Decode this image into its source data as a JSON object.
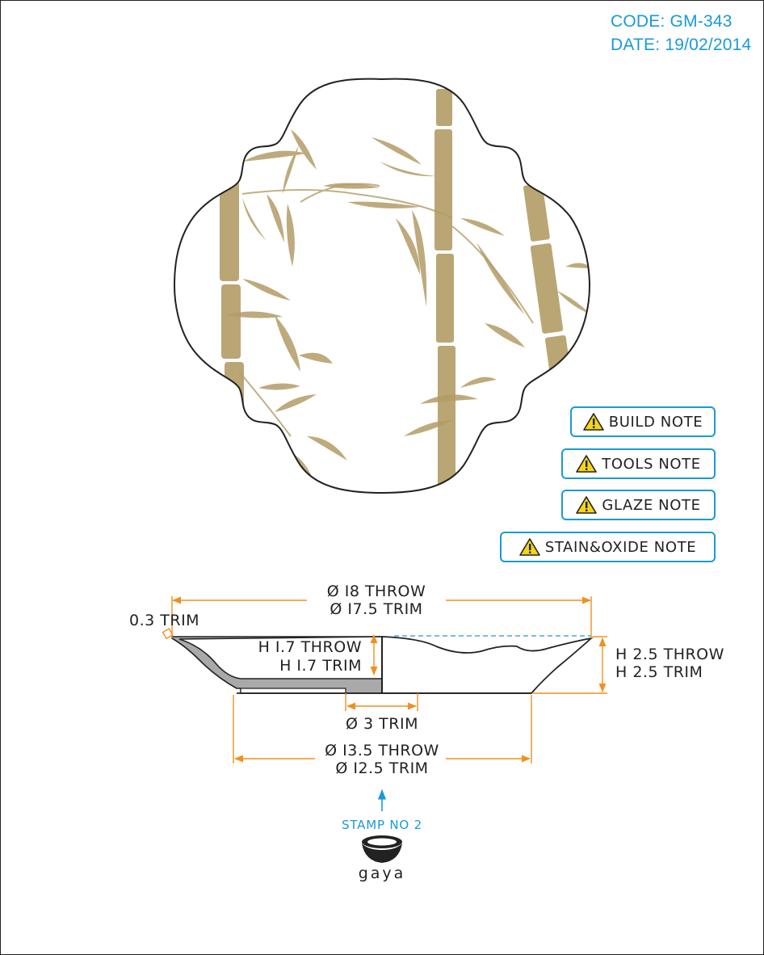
{
  "header": {
    "code": "CODE: GM-343",
    "date": "DATE: 19/02/2014"
  },
  "notes": [
    {
      "label": "BUILD NOTE",
      "icon": "warning-icon"
    },
    {
      "label": "TOOLS NOTE",
      "icon": "warning-icon"
    },
    {
      "label": "GLAZE NOTE",
      "icon": "warning-icon"
    },
    {
      "label": "STAIN&OXIDE NOTE",
      "icon": "warning-icon"
    }
  ],
  "dimensions": {
    "overall_throw": "Ø I8 THROW",
    "overall_trim": "Ø I7.5 TRIM",
    "rim_trim": "0.3 TRIM",
    "inner_height_throw": "H I.7 THROW",
    "inner_height_trim": "H I.7 TRIM",
    "height_throw": "H 2.5 THROW",
    "height_trim": "H 2.5 TRIM",
    "center_trim": "Ø 3 TRIM",
    "foot_throw": "Ø I3.5 THROW",
    "foot_trim": "Ø I2.5 TRIM"
  },
  "stamp": {
    "label": "STAMP NO 2",
    "brand": "gaya"
  },
  "colors": {
    "accent": "#1a9ad6",
    "dimension": "#f0901e",
    "bamboo": "#b39c66",
    "outline": "#222222"
  }
}
